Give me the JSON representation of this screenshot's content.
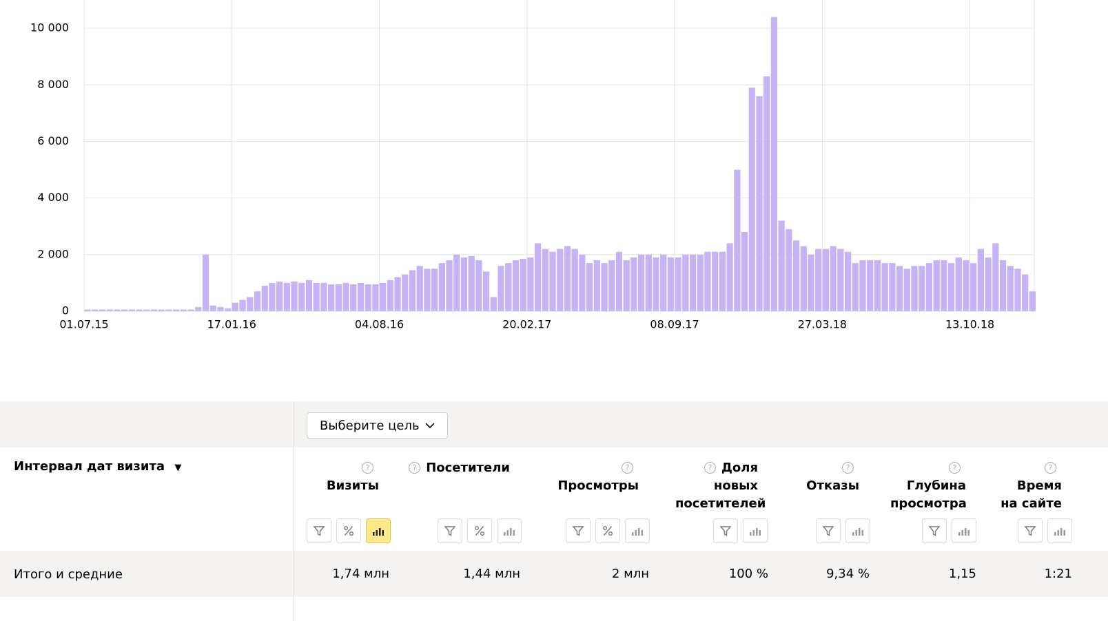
{
  "chart_data": {
    "type": "bar",
    "categories": [
      "01.07.15",
      null,
      null,
      null,
      null,
      null,
      null,
      null,
      null,
      null,
      null,
      null,
      null,
      null,
      null,
      null,
      null,
      null,
      null,
      null,
      "17.01.16",
      null,
      null,
      null,
      null,
      null,
      null,
      null,
      null,
      null,
      null,
      null,
      null,
      null,
      null,
      null,
      null,
      null,
      null,
      null,
      "04.08.16",
      null,
      null,
      null,
      null,
      null,
      null,
      null,
      null,
      null,
      null,
      null,
      null,
      null,
      null,
      null,
      null,
      null,
      null,
      null,
      "20.02.17",
      null,
      null,
      null,
      null,
      null,
      null,
      null,
      null,
      null,
      null,
      null,
      null,
      null,
      null,
      null,
      null,
      null,
      null,
      null,
      "08.09.17",
      null,
      null,
      null,
      null,
      null,
      null,
      null,
      null,
      null,
      null,
      null,
      null,
      null,
      null,
      null,
      null,
      null,
      null,
      null,
      "27.03.18",
      null,
      null,
      null,
      null,
      null,
      null,
      null,
      null,
      null,
      null,
      null,
      null,
      null,
      null,
      null,
      null,
      null,
      null,
      null,
      "13.10.18",
      null,
      null,
      null,
      null,
      null,
      null,
      null,
      null
    ],
    "values": [
      60,
      60,
      60,
      60,
      60,
      60,
      60,
      60,
      60,
      60,
      60,
      60,
      60,
      60,
      60,
      150,
      2000,
      200,
      150,
      100,
      300,
      400,
      500,
      700,
      900,
      1000,
      1050,
      1000,
      1050,
      1000,
      1100,
      1000,
      1000,
      950,
      950,
      1000,
      950,
      1000,
      950,
      950,
      1000,
      1100,
      1200,
      1300,
      1450,
      1600,
      1500,
      1500,
      1700,
      1800,
      2000,
      1900,
      1950,
      1800,
      1400,
      500,
      1600,
      1700,
      1800,
      1850,
      1900,
      2400,
      2200,
      2100,
      2200,
      2300,
      2200,
      2000,
      1700,
      1800,
      1700,
      1800,
      2100,
      1800,
      1900,
      2000,
      2000,
      1900,
      2000,
      1900,
      1900,
      2000,
      2000,
      2000,
      2100,
      2100,
      2100,
      2400,
      5000,
      2800,
      7900,
      7600,
      8300,
      10400,
      3200,
      2900,
      2500,
      2300,
      2000,
      2200,
      2200,
      2300,
      2200,
      2100,
      1700,
      1800,
      1800,
      1800,
      1700,
      1700,
      1600,
      1500,
      1600,
      1600,
      1700,
      1800,
      1800,
      1700,
      1900,
      1800,
      1700,
      2200,
      1900,
      2400,
      1800,
      1600,
      1500,
      1300,
      700
    ],
    "color": "#c5b3f6",
    "ylim": [
      0,
      11000
    ],
    "yticks": [
      0,
      {
        "value": 2000,
        "label": "2 000"
      },
      {
        "value": 4000,
        "label": "4 000"
      },
      {
        "value": 6000,
        "label": "6 000"
      },
      {
        "value": 8000,
        "label": "8 000"
      },
      {
        "value": 10000,
        "label": "10 000"
      }
    ],
    "grid": true
  },
  "table": {
    "goal_button": "Выберите цель",
    "dimension_header": "Интервал дат визита",
    "columns": [
      {
        "name": "Визиты",
        "total": "1,74 млн"
      },
      {
        "name": "Посетители",
        "total": "1,44 млн"
      },
      {
        "name": "Просмотры",
        "total": "2 млн"
      },
      {
        "name": "Доля новых посетителей",
        "total": "100 %"
      },
      {
        "name": "Отказы",
        "total": "9,34 %"
      },
      {
        "name": "Глубина просмотра",
        "total": "1,15"
      },
      {
        "name": "Время на сайте",
        "total": "1:21"
      }
    ],
    "totals_label": "Итого и средние"
  }
}
